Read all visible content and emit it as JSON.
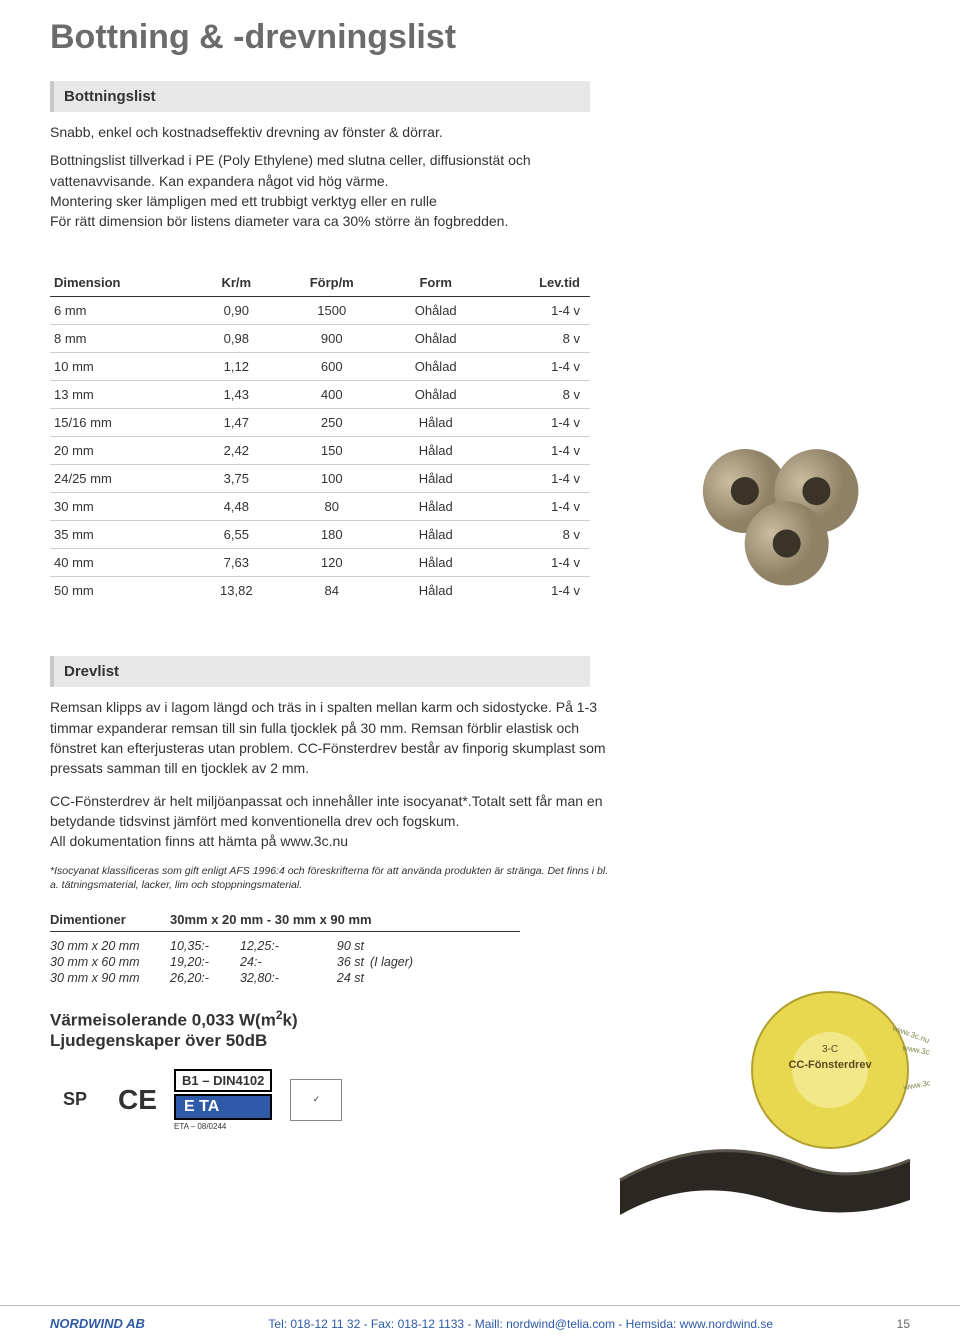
{
  "page_title": "Bottning & -drevningslist",
  "section1": {
    "heading": "Bottningslist",
    "intro_line1": "Snabb, enkel och kostnadseffektiv drevning av fönster & dörrar.",
    "intro_body": "Bottningslist tillverkad i PE (Poly Ethylene) med slutna celler, diffusionstät och vattenavvisande. Kan expandera något vid hög värme.\nMontering sker lämpligen med ett trubbigt verktyg eller en rulle\nFör rätt dimension bör listens diameter vara ca 30% större än fogbredden.",
    "table": {
      "columns": [
        "Dimension",
        "Kr/m",
        "Förp/m",
        "Form",
        "Lev.tid"
      ],
      "rows": [
        [
          "6 mm",
          "0,90",
          "1500",
          "Ohålad",
          "1-4 v"
        ],
        [
          "8 mm",
          "0,98",
          "900",
          "Ohålad",
          "8 v"
        ],
        [
          "10 mm",
          "1,12",
          "600",
          "Ohålad",
          "1-4 v"
        ],
        [
          "13 mm",
          "1,43",
          "400",
          "Ohålad",
          "8 v"
        ],
        [
          "15/16 mm",
          "1,47",
          "250",
          "Hålad",
          "1-4 v"
        ],
        [
          "20 mm",
          "2,42",
          "150",
          "Hålad",
          "1-4 v"
        ],
        [
          "24/25 mm",
          "3,75",
          "100",
          "Hålad",
          "1-4 v"
        ],
        [
          "30 mm",
          "4,48",
          "80",
          "Hålad",
          "1-4 v"
        ],
        [
          "35 mm",
          "6,55",
          "180",
          "Hålad",
          "8 v"
        ],
        [
          "40 mm",
          "7,63",
          "120",
          "Hålad",
          "1-4 v"
        ],
        [
          "50 mm",
          "13,82",
          "84",
          "Hålad",
          "1-4 v"
        ]
      ],
      "header_bg": "#ffffff",
      "border_color": "#cfcfcf"
    },
    "image": {
      "type": "foam-rods",
      "rod_color": "#b8a88c",
      "rod_dark": "#8a7b61",
      "hole_color": "#3a3326"
    }
  },
  "section2": {
    "heading": "Drevlist",
    "para1": "Remsan klipps av i lagom längd och träs in i spalten mellan karm och sidostycke. På 1-3 timmar expanderar remsan till sin fulla tjocklek på 30 mm. Remsan förblir elastisk och fönstret kan efterjusteras utan problem. CC-Fönsterdrev består av finporig skumplast som pressats samman till en tjocklek av 2 mm.",
    "para2": "CC-Fönsterdrev är helt miljöanpassat och innehåller inte isocyanat*.Totalt sett får man en betydande tidsvinst jämfört med konventionella drev och fogskum.\nAll dokumentation finns att hämta på www.3c.nu",
    "footnote": "*Isocyanat klassificeras som gift enligt AFS 1996:4 och föreskrifterna för att använda produkten är stränga. Det finns i bl. a. tätningsmaterial, lacker, lim och stoppningsmaterial.",
    "table_header_left": "Dimentioner",
    "table_header_right": "30mm x 20 mm  -  30 mm x 90 mm",
    "rows": [
      {
        "dim": "30 mm x 20 mm",
        "p1": "10,35:-",
        "p2": "12,25:-",
        "q": "90 st",
        "note": ""
      },
      {
        "dim": "30 mm x 60 mm",
        "p1": "19,20:-",
        "p2": "24:-",
        "q": "36 st",
        "note": "(I lager)"
      },
      {
        "dim": "30 mm x 90 mm",
        "p1": "26,20:-",
        "p2": "32,80:-",
        "q": "24 st",
        "note": ""
      }
    ],
    "spec1": "Värmeisolerande 0,033 W(m",
    "spec1_sup": "2",
    "spec1_end": "k)",
    "spec2": "Ljudegenskaper över 50dB",
    "certs": {
      "sp": "SP",
      "ce": "CE",
      "eta_small": "ETA – 08/0244",
      "b1": "B1 – DIN4102",
      "eta": "E   TA"
    },
    "image": {
      "type": "tape-roll",
      "label_bg": "#e8d850",
      "label_text_color": "#333",
      "tape_color": "#2b2824",
      "brand_text": "CC-Fönsterdrev",
      "url_text": "www.3c.nu"
    }
  },
  "footer": {
    "brand": "NORDWIND AB",
    "contact": "Tel: 018-12 11 32 - Fax: 018-12 1133   -   Maill: nordwind@telia.com   -   Hemsida: www.nordwind.se",
    "page": "15"
  },
  "colors": {
    "heading_gray": "#6b6b6b",
    "section_bg": "#e7e7e7",
    "section_border": "#c8c8c8",
    "link_blue": "#2e5aa8",
    "text": "#333333"
  }
}
